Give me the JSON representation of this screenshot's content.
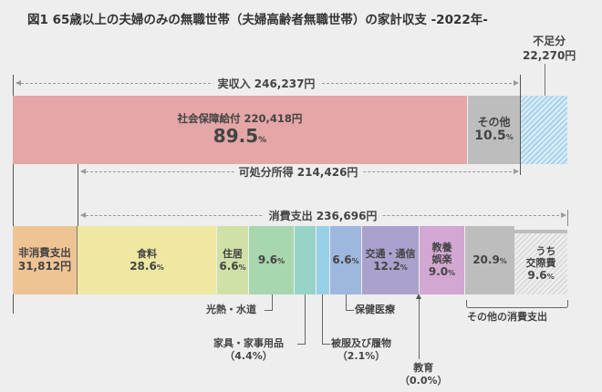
{
  "title": "図1 65歳以上の夫婦のみの無職世帯（夫婦高齢者無職世帯）の家計収支 -2022年-",
  "unit": "円",
  "income": {
    "label": "実収入 246,237円",
    "social_security": {
      "label": "社会保障給付 220,418円",
      "pct": "89.5",
      "pct_unit": "%",
      "color": "#e4a6a6"
    },
    "other": {
      "label": "その他",
      "pct": "10.5",
      "pct_unit": "%",
      "color": "#bdbdbd"
    },
    "deficit": {
      "label": "不足分",
      "amount": "22,270円",
      "color": "#a9d2ea"
    }
  },
  "disposable_income": {
    "label": "可処分所得 214,426円"
  },
  "consumption": {
    "label": "消費支出 236,696円"
  },
  "non_consumption": {
    "label": "非消費支出",
    "amount": "31,812円",
    "color": "#eec494"
  },
  "expenditure_segments": [
    {
      "label": "食料",
      "pct": "28.6",
      "color": "#efe8a2"
    },
    {
      "label": "住居",
      "pct": "6.6",
      "color": "#d0e1a8"
    },
    {
      "label": "光熱・水道",
      "pct": "9.6",
      "color": "#a8d6ae"
    },
    {
      "label": "家具・家事用品",
      "pct": "4.4",
      "color": "#98d3c8"
    },
    {
      "label": "被服及び履物",
      "pct": "2.1",
      "color": "#98d0e7"
    },
    {
      "label": "保健医療",
      "pct": "6.6",
      "color": "#9eb7de"
    },
    {
      "label": "交通・通信",
      "pct": "12.2",
      "color": "#aaa1cd"
    },
    {
      "label": "教養娯楽",
      "label_lines": [
        "教養",
        "娯楽"
      ],
      "pct": "9.0",
      "color": "#d2a7d1"
    },
    {
      "label": "教育",
      "pct": "0.0"
    },
    {
      "label": "その他の消費支出",
      "pct": "20.9",
      "color": "#bdbdbd"
    },
    {
      "label": "うち交際費",
      "label_lines": [
        "うち",
        "交際費"
      ],
      "pct": "9.6",
      "color": "#e2e2e2"
    }
  ],
  "annotations": {
    "utilities": "光熱・水道",
    "furniture": "家具・家事用品",
    "furniture_pct": "（4.4%）",
    "clothing": "被服及び履物",
    "clothing_pct": "（2.1%）",
    "health": "保健医療",
    "education": "教育",
    "education_pct": "（0.0%）",
    "other_consumption": "その他の消費支出"
  },
  "pct_unit": "%",
  "chart_data": {
    "type": "bar",
    "title": "図1 65歳以上の夫婦のみの無職世帯（夫婦高齢者無職世帯）の家計収支 -2022年-",
    "stacked": true,
    "income": {
      "total": 246237,
      "social_security": 220418,
      "social_security_pct": 89.5,
      "other_pct": 10.5,
      "deficit": 22270
    },
    "disposable_income": 214426,
    "non_consumption_expenditure": 31812,
    "consumption_expenditure": 236696,
    "categories": [
      "食料",
      "住居",
      "光熱・水道",
      "家具・家事用品",
      "被服及び履物",
      "保健医療",
      "交通・通信",
      "教養娯楽",
      "教育",
      "その他の消費支出",
      "うち交際費"
    ],
    "values": [
      28.6,
      6.6,
      9.6,
      4.4,
      2.1,
      6.6,
      12.2,
      9.0,
      0.0,
      20.9,
      9.6
    ]
  }
}
